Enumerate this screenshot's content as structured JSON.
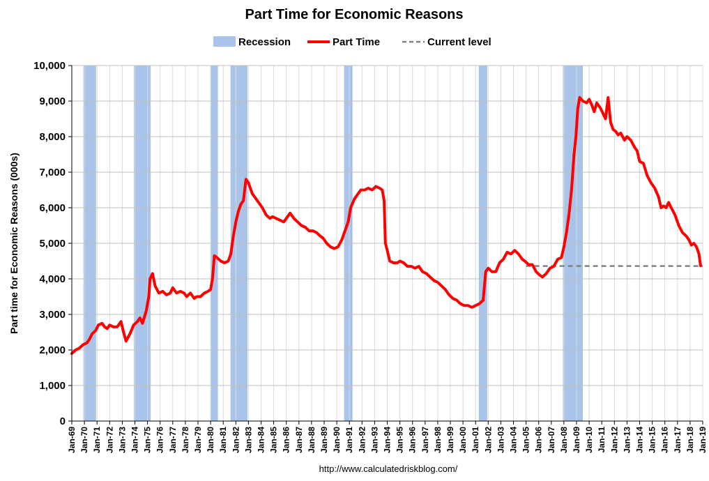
{
  "chart_data": {
    "type": "line",
    "title": "Part Time for Economic Reasons",
    "ylabel": "Part time for Economic Reasons (000s)",
    "xlabel": "",
    "source_text": "http://www.calculatedriskblog.com/",
    "ylim": [
      0,
      10000
    ],
    "yticks": [
      0,
      1000,
      2000,
      3000,
      4000,
      5000,
      6000,
      7000,
      8000,
      9000,
      10000
    ],
    "ytick_labels": [
      "0",
      "1,000",
      "2,000",
      "3,000",
      "4,000",
      "5,000",
      "6,000",
      "7,000",
      "8,000",
      "9,000",
      "10,000"
    ],
    "xlim": [
      1969.0,
      2019.0
    ],
    "xtick_labels": [
      "Jan-69",
      "Jan-70",
      "Jan-71",
      "Jan-72",
      "Jan-73",
      "Jan-74",
      "Jan-75",
      "Jan-76",
      "Jan-77",
      "Jan-78",
      "Jan-79",
      "Jan-80",
      "Jan-81",
      "Jan-82",
      "Jan-83",
      "Jan-84",
      "Jan-85",
      "Jan-86",
      "Jan-87",
      "Jan-88",
      "Jan-89",
      "Jan-90",
      "Jan-91",
      "Jan-92",
      "Jan-93",
      "Jan-94",
      "Jan-95",
      "Jan-96",
      "Jan-97",
      "Jan-98",
      "Jan-99",
      "Jan-00",
      "Jan-01",
      "Jan-02",
      "Jan-03",
      "Jan-04",
      "Jan-05",
      "Jan-06",
      "Jan-07",
      "Jan-08",
      "Jan-09",
      "Jan-10",
      "Jan-11",
      "Jan-12",
      "Jan-13",
      "Jan-14",
      "Jan-15",
      "Jan-16",
      "Jan-17",
      "Jan-18",
      "Jan-19"
    ],
    "grid": "vertical",
    "legend_position": "top-center",
    "legend": [
      {
        "label": "Recession",
        "kind": "box",
        "color": "#A9C4E8"
      },
      {
        "label": "Part Time",
        "kind": "line",
        "color": "#FF0000"
      },
      {
        "label": "Current level",
        "kind": "dash",
        "color": "#808080"
      }
    ],
    "recessions": [
      [
        1969.92,
        1970.92
      ],
      [
        1973.92,
        1975.25
      ],
      [
        1980.0,
        1980.58
      ],
      [
        1981.58,
        1982.92
      ],
      [
        1990.58,
        1991.25
      ],
      [
        2001.25,
        2001.92
      ],
      [
        2007.92,
        2009.5
      ]
    ],
    "current_level": {
      "value": 4360,
      "x_start": 2005.0,
      "x_end": 2019.0,
      "color": "#808080"
    },
    "series": [
      {
        "name": "Part Time",
        "color": "#FF0000",
        "points": [
          [
            1969.0,
            1900
          ],
          [
            1969.3,
            2000
          ],
          [
            1969.6,
            2050
          ],
          [
            1969.9,
            2150
          ],
          [
            1970.2,
            2200
          ],
          [
            1970.4,
            2300
          ],
          [
            1970.6,
            2450
          ],
          [
            1970.9,
            2550
          ],
          [
            1971.1,
            2700
          ],
          [
            1971.4,
            2750
          ],
          [
            1971.6,
            2650
          ],
          [
            1971.8,
            2600
          ],
          [
            1972.0,
            2700
          ],
          [
            1972.3,
            2650
          ],
          [
            1972.6,
            2650
          ],
          [
            1972.9,
            2800
          ],
          [
            1973.1,
            2500
          ],
          [
            1973.3,
            2250
          ],
          [
            1973.6,
            2450
          ],
          [
            1973.9,
            2700
          ],
          [
            1974.2,
            2800
          ],
          [
            1974.4,
            2900
          ],
          [
            1974.6,
            2750
          ],
          [
            1974.9,
            3100
          ],
          [
            1975.1,
            3500
          ],
          [
            1975.2,
            4000
          ],
          [
            1975.4,
            4150
          ],
          [
            1975.6,
            3800
          ],
          [
            1975.9,
            3600
          ],
          [
            1976.2,
            3650
          ],
          [
            1976.5,
            3550
          ],
          [
            1976.8,
            3600
          ],
          [
            1977.0,
            3750
          ],
          [
            1977.3,
            3600
          ],
          [
            1977.6,
            3650
          ],
          [
            1977.9,
            3600
          ],
          [
            1978.1,
            3500
          ],
          [
            1978.4,
            3600
          ],
          [
            1978.7,
            3450
          ],
          [
            1978.9,
            3500
          ],
          [
            1979.2,
            3500
          ],
          [
            1979.5,
            3600
          ],
          [
            1979.8,
            3650
          ],
          [
            1980.0,
            3700
          ],
          [
            1980.15,
            4000
          ],
          [
            1980.3,
            4650
          ],
          [
            1980.5,
            4600
          ],
          [
            1980.8,
            4500
          ],
          [
            1981.1,
            4450
          ],
          [
            1981.4,
            4500
          ],
          [
            1981.6,
            4700
          ],
          [
            1981.8,
            5200
          ],
          [
            1982.0,
            5600
          ],
          [
            1982.2,
            5900
          ],
          [
            1982.4,
            6100
          ],
          [
            1982.6,
            6200
          ],
          [
            1982.8,
            6800
          ],
          [
            1983.0,
            6700
          ],
          [
            1983.3,
            6400
          ],
          [
            1983.6,
            6250
          ],
          [
            1983.9,
            6100
          ],
          [
            1984.1,
            6000
          ],
          [
            1984.4,
            5800
          ],
          [
            1984.7,
            5700
          ],
          [
            1984.9,
            5750
          ],
          [
            1985.2,
            5700
          ],
          [
            1985.5,
            5650
          ],
          [
            1985.8,
            5600
          ],
          [
            1986.0,
            5700
          ],
          [
            1986.3,
            5850
          ],
          [
            1986.6,
            5700
          ],
          [
            1986.9,
            5600
          ],
          [
            1987.2,
            5500
          ],
          [
            1987.5,
            5450
          ],
          [
            1987.8,
            5350
          ],
          [
            1988.1,
            5350
          ],
          [
            1988.4,
            5300
          ],
          [
            1988.7,
            5200
          ],
          [
            1988.9,
            5150
          ],
          [
            1989.2,
            5000
          ],
          [
            1989.5,
            4900
          ],
          [
            1989.8,
            4850
          ],
          [
            1990.1,
            4900
          ],
          [
            1990.4,
            5100
          ],
          [
            1990.7,
            5400
          ],
          [
            1990.9,
            5600
          ],
          [
            1991.1,
            6000
          ],
          [
            1991.4,
            6250
          ],
          [
            1991.6,
            6350
          ],
          [
            1991.9,
            6500
          ],
          [
            1992.2,
            6500
          ],
          [
            1992.5,
            6550
          ],
          [
            1992.8,
            6500
          ],
          [
            1993.1,
            6600
          ],
          [
            1993.4,
            6550
          ],
          [
            1993.6,
            6500
          ],
          [
            1993.75,
            6200
          ],
          [
            1993.85,
            5000
          ],
          [
            1994.0,
            4800
          ],
          [
            1994.2,
            4500
          ],
          [
            1994.5,
            4450
          ],
          [
            1994.8,
            4450
          ],
          [
            1995.0,
            4500
          ],
          [
            1995.3,
            4450
          ],
          [
            1995.6,
            4350
          ],
          [
            1995.9,
            4350
          ],
          [
            1996.2,
            4300
          ],
          [
            1996.5,
            4350
          ],
          [
            1996.8,
            4200
          ],
          [
            1997.1,
            4150
          ],
          [
            1997.4,
            4050
          ],
          [
            1997.7,
            3950
          ],
          [
            1998.0,
            3900
          ],
          [
            1998.3,
            3800
          ],
          [
            1998.6,
            3700
          ],
          [
            1998.9,
            3550
          ],
          [
            1999.2,
            3450
          ],
          [
            1999.5,
            3400
          ],
          [
            1999.8,
            3300
          ],
          [
            2000.1,
            3250
          ],
          [
            2000.4,
            3250
          ],
          [
            2000.7,
            3200
          ],
          [
            2001.0,
            3250
          ],
          [
            2001.3,
            3300
          ],
          [
            2001.6,
            3400
          ],
          [
            2001.8,
            4200
          ],
          [
            2002.0,
            4300
          ],
          [
            2002.3,
            4200
          ],
          [
            2002.6,
            4200
          ],
          [
            2002.9,
            4450
          ],
          [
            2003.2,
            4550
          ],
          [
            2003.5,
            4750
          ],
          [
            2003.8,
            4700
          ],
          [
            2004.1,
            4800
          ],
          [
            2004.4,
            4700
          ],
          [
            2004.7,
            4550
          ],
          [
            2004.9,
            4500
          ],
          [
            2005.2,
            4400
          ],
          [
            2005.5,
            4400
          ],
          [
            2005.8,
            4200
          ],
          [
            2006.1,
            4100
          ],
          [
            2006.3,
            4050
          ],
          [
            2006.6,
            4150
          ],
          [
            2006.9,
            4300
          ],
          [
            2007.2,
            4350
          ],
          [
            2007.5,
            4550
          ],
          [
            2007.8,
            4600
          ],
          [
            2008.0,
            4900
          ],
          [
            2008.2,
            5300
          ],
          [
            2008.4,
            5800
          ],
          [
            2008.6,
            6500
          ],
          [
            2008.8,
            7500
          ],
          [
            2008.95,
            8000
          ],
          [
            2009.1,
            8800
          ],
          [
            2009.25,
            9100
          ],
          [
            2009.5,
            9000
          ],
          [
            2009.8,
            8950
          ],
          [
            2010.0,
            9050
          ],
          [
            2010.2,
            8900
          ],
          [
            2010.4,
            8700
          ],
          [
            2010.6,
            8950
          ],
          [
            2010.9,
            8800
          ],
          [
            2011.1,
            8650
          ],
          [
            2011.3,
            8500
          ],
          [
            2011.5,
            9100
          ],
          [
            2011.7,
            8400
          ],
          [
            2011.9,
            8200
          ],
          [
            2012.1,
            8150
          ],
          [
            2012.3,
            8050
          ],
          [
            2012.5,
            8100
          ],
          [
            2012.8,
            7900
          ],
          [
            2013.0,
            8000
          ],
          [
            2013.3,
            7900
          ],
          [
            2013.6,
            7700
          ],
          [
            2013.8,
            7600
          ],
          [
            2014.0,
            7300
          ],
          [
            2014.3,
            7250
          ],
          [
            2014.6,
            6900
          ],
          [
            2014.9,
            6700
          ],
          [
            2015.2,
            6550
          ],
          [
            2015.5,
            6300
          ],
          [
            2015.7,
            6000
          ],
          [
            2015.9,
            6050
          ],
          [
            2016.1,
            6000
          ],
          [
            2016.3,
            6150
          ],
          [
            2016.5,
            6000
          ],
          [
            2016.8,
            5800
          ],
          [
            2017.1,
            5500
          ],
          [
            2017.4,
            5300
          ],
          [
            2017.7,
            5200
          ],
          [
            2017.9,
            5100
          ],
          [
            2018.1,
            4950
          ],
          [
            2018.3,
            5000
          ],
          [
            2018.5,
            4900
          ],
          [
            2018.7,
            4700
          ],
          [
            2018.83,
            4370
          ]
        ]
      }
    ]
  }
}
